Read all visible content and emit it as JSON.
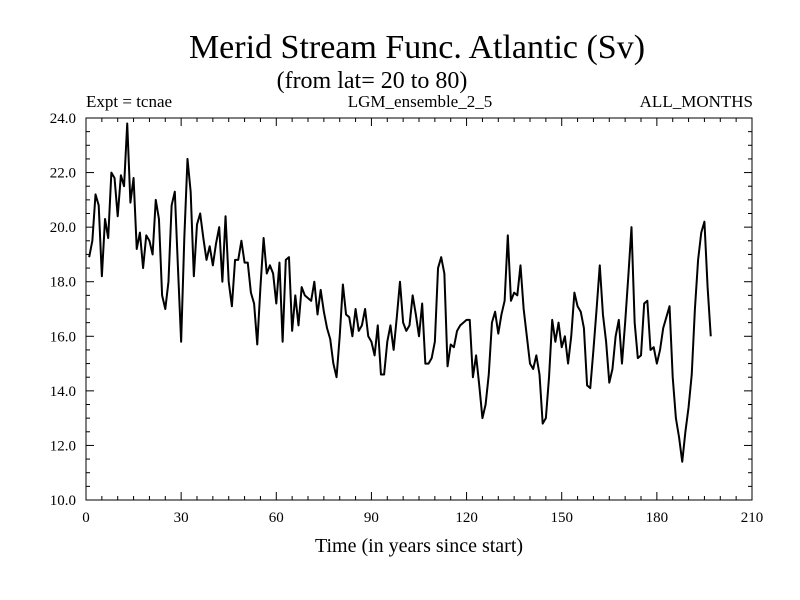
{
  "chart_data": {
    "type": "line",
    "title": "Merid Stream Func. Atlantic (Sv)",
    "subtitle": "(from lat= 20 to 80)",
    "header_left": "Expt = tcnae",
    "header_center": "LGM_ensemble_2_5",
    "header_right": "ALL_MONTHS",
    "xlabel": "Time (in years since start)",
    "ylabel": "",
    "xlim": [
      0,
      210
    ],
    "ylim": [
      10.0,
      24.0
    ],
    "xticks": [
      0,
      30,
      60,
      90,
      120,
      150,
      180,
      210
    ],
    "yticks": [
      10.0,
      12.0,
      14.0,
      16.0,
      18.0,
      20.0,
      22.0,
      24.0
    ],
    "xtick_labels": [
      "0",
      "30",
      "60",
      "90",
      "120",
      "150",
      "180",
      "210"
    ],
    "ytick_labels": [
      "10.0",
      "12.0",
      "14.0",
      "16.0",
      "18.0",
      "20.0",
      "22.0",
      "24.0"
    ],
    "grid": false,
    "series": [
      {
        "name": "Merid Stream Func. Atlantic",
        "color": "#000000",
        "x_start": 1,
        "x_step": 1,
        "values": [
          18.9,
          19.5,
          21.2,
          20.8,
          18.2,
          20.3,
          19.6,
          22.0,
          21.8,
          20.4,
          21.9,
          21.5,
          23.8,
          20.9,
          21.8,
          19.2,
          19.8,
          18.5,
          19.7,
          19.5,
          19.0,
          21.0,
          20.3,
          17.5,
          17.0,
          18.0,
          20.8,
          21.3,
          18.5,
          15.8,
          19.6,
          22.5,
          21.3,
          18.2,
          20.1,
          20.5,
          19.6,
          18.8,
          19.3,
          18.6,
          19.4,
          20.0,
          18.0,
          20.4,
          18.0,
          17.1,
          18.8,
          18.8,
          19.5,
          18.7,
          18.7,
          17.6,
          17.2,
          15.7,
          17.8,
          19.6,
          18.3,
          18.6,
          18.3,
          17.2,
          18.7,
          15.8,
          18.8,
          18.9,
          16.2,
          17.5,
          16.4,
          17.8,
          17.5,
          17.4,
          17.3,
          18.0,
          16.8,
          17.7,
          16.9,
          16.3,
          15.9,
          15.0,
          14.5,
          16.0,
          17.9,
          16.8,
          16.7,
          16.0,
          17.0,
          16.2,
          16.4,
          17.0,
          16.0,
          15.8,
          15.3,
          16.4,
          14.6,
          14.6,
          15.8,
          16.4,
          15.5,
          16.7,
          18.0,
          16.5,
          16.2,
          16.4,
          17.5,
          16.8,
          16.0,
          17.2,
          15.0,
          15.0,
          15.2,
          15.8,
          18.5,
          18.9,
          18.3,
          14.9,
          15.7,
          15.6,
          16.2,
          16.4,
          16.5,
          16.6,
          16.6,
          14.5,
          15.3,
          14.2,
          13.0,
          13.5,
          14.6,
          16.5,
          16.9,
          16.1,
          16.8,
          17.3,
          19.7,
          17.3,
          17.6,
          17.5,
          18.6,
          17.0,
          16.0,
          15.0,
          14.8,
          15.3,
          14.6,
          12.8,
          13.0,
          14.5,
          16.6,
          15.8,
          16.5,
          15.6,
          16.0,
          15.0,
          16.0,
          17.6,
          17.1,
          16.9,
          16.3,
          14.2,
          14.1,
          15.5,
          17.0,
          18.6,
          16.8,
          15.8,
          14.3,
          14.8,
          16.0,
          16.6,
          15.0,
          16.5,
          18.2,
          20.0,
          16.5,
          15.2,
          15.3,
          17.2,
          17.3,
          15.5,
          15.6,
          15.0,
          15.5,
          16.3,
          16.7,
          17.1,
          14.5,
          13.0,
          12.3,
          11.4,
          12.5,
          13.4,
          14.6,
          17.0,
          18.8,
          19.8,
          20.2,
          17.8,
          16.0
        ]
      }
    ]
  }
}
